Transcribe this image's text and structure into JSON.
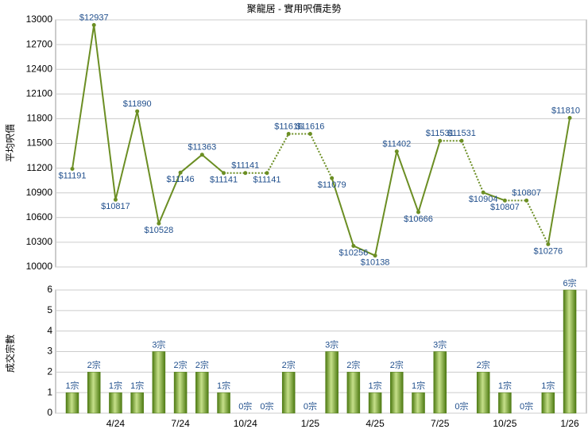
{
  "chart_data": [
    {
      "type": "line",
      "title": "聚龍居 - 實用呎價走勢",
      "ylabel": "平均呎價",
      "color": "#6b8e23",
      "values": [
        11191,
        12937,
        10817,
        11890,
        10528,
        11146,
        11363,
        11141,
        11141,
        11141,
        11616,
        11616,
        11079,
        10256,
        10138,
        11402,
        10666,
        11531,
        11531,
        10904,
        10807,
        10807,
        10276,
        11810
      ],
      "value_labels": [
        "$11191",
        "$12937",
        "$10817",
        "$11890",
        "$10528",
        "$11146",
        "$11363",
        "$11141",
        "$11141",
        "$11141",
        "$11616",
        "$11616",
        "$11079",
        "$10256",
        "$10138",
        "$11402",
        "$10666",
        "$11531",
        "$11531",
        "$10904",
        "$10807",
        "$10807",
        "$10276",
        "$11810"
      ],
      "ylim": [
        10000,
        13000
      ],
      "yticks": [
        10000,
        10300,
        10600,
        10900,
        11200,
        11500,
        11800,
        12100,
        12400,
        12700,
        13000
      ],
      "grid": true
    },
    {
      "type": "bar",
      "ylabel": "成交宗數",
      "color": "#6f9a2a",
      "categories": [
        null,
        null,
        "4/24",
        null,
        null,
        "7/24",
        null,
        null,
        "10/24",
        null,
        null,
        "1/25",
        null,
        null,
        "4/25",
        null,
        null,
        "7/25",
        null,
        null,
        "10/25",
        null,
        null,
        "1/26"
      ],
      "values": [
        1,
        2,
        1,
        1,
        3,
        2,
        2,
        1,
        0,
        0,
        2,
        0,
        3,
        2,
        1,
        2,
        1,
        3,
        0,
        2,
        1,
        0,
        1,
        6
      ],
      "value_labels": [
        "1宗",
        "2宗",
        "1宗",
        "1宗",
        "3宗",
        "2宗",
        "2宗",
        "1宗",
        "0宗",
        "0宗",
        "2宗",
        "0宗",
        "3宗",
        "2宗",
        "1宗",
        "2宗",
        "1宗",
        "3宗",
        "0宗",
        "2宗",
        "1宗",
        "0宗",
        "1宗",
        "6宗"
      ],
      "ylim": [
        0,
        6
      ],
      "yticks": [
        0,
        1,
        2,
        3,
        4,
        5,
        6
      ],
      "grid": true
    }
  ]
}
